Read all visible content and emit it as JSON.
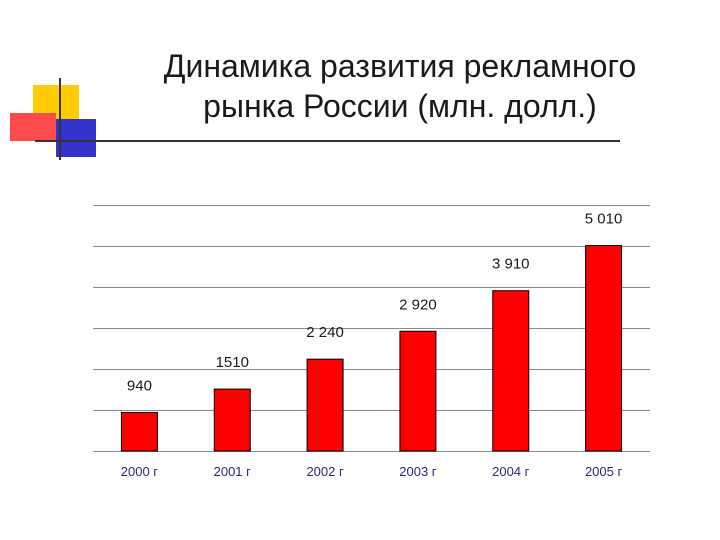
{
  "slide": {
    "title_line1": "Динамика развития рекламного",
    "title_line2": "рынка России (млн. долл.)"
  },
  "colors": {
    "bar": "#ff0000",
    "bar_stroke": "#000000",
    "gridline": "#8a8a8a",
    "tick_label": "#2a2a7a",
    "data_label": "#1a1a1a",
    "accent_yellow": "#ffcc00",
    "accent_red": "#ff4b4b",
    "accent_blue": "#3333cc",
    "rule": "#333333"
  },
  "chart_data": {
    "type": "bar",
    "title": "",
    "xlabel": "",
    "ylabel": "",
    "categories": [
      "2000 г",
      "2001 г",
      "2002 г",
      "2003 г",
      "2004 г",
      "2005 г"
    ],
    "values": [
      940,
      1510,
      2240,
      2920,
      3910,
      5010
    ],
    "data_labels": [
      "940",
      "1510",
      "2 240",
      "2 920",
      "3 910",
      "5 010"
    ],
    "ylim": [
      0,
      6000
    ],
    "gridline_values": [
      0,
      1000,
      2000,
      3000,
      4000,
      5000,
      6000
    ],
    "grid": true,
    "legend": "none"
  }
}
